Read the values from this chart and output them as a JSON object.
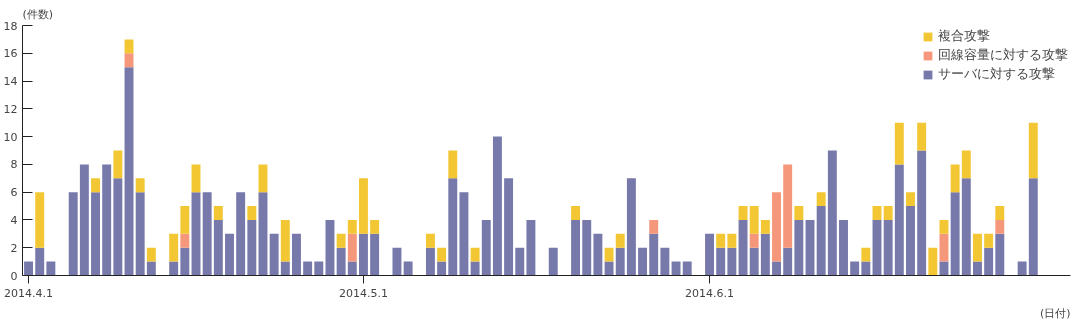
{
  "chart_data": {
    "type": "bar",
    "stacked": true,
    "ylabel": "(件数)",
    "xlabel": "(日付)",
    "x": [
      "2014-04-01",
      "2014-04-02",
      "2014-04-03",
      "2014-04-04",
      "2014-04-05",
      "2014-04-06",
      "2014-04-07",
      "2014-04-08",
      "2014-04-09",
      "2014-04-10",
      "2014-04-11",
      "2014-04-12",
      "2014-04-13",
      "2014-04-14",
      "2014-04-15",
      "2014-04-16",
      "2014-04-17",
      "2014-04-18",
      "2014-04-19",
      "2014-04-20",
      "2014-04-21",
      "2014-04-22",
      "2014-04-23",
      "2014-04-24",
      "2014-04-25",
      "2014-04-26",
      "2014-04-27",
      "2014-04-28",
      "2014-04-29",
      "2014-04-30",
      "2014-05-01",
      "2014-05-02",
      "2014-05-03",
      "2014-05-04",
      "2014-05-05",
      "2014-05-06",
      "2014-05-07",
      "2014-05-08",
      "2014-05-09",
      "2014-05-10",
      "2014-05-11",
      "2014-05-12",
      "2014-05-13",
      "2014-05-14",
      "2014-05-15",
      "2014-05-16",
      "2014-05-17",
      "2014-05-18",
      "2014-05-19",
      "2014-05-20",
      "2014-05-21",
      "2014-05-22",
      "2014-05-23",
      "2014-05-24",
      "2014-05-25",
      "2014-05-26",
      "2014-05-27",
      "2014-05-28",
      "2014-05-29",
      "2014-05-30",
      "2014-05-31",
      "2014-06-01",
      "2014-06-02",
      "2014-06-03",
      "2014-06-04",
      "2014-06-05",
      "2014-06-06",
      "2014-06-07",
      "2014-06-08",
      "2014-06-09",
      "2014-06-10",
      "2014-06-11",
      "2014-06-12",
      "2014-06-13",
      "2014-06-14",
      "2014-06-15",
      "2014-06-16",
      "2014-06-17",
      "2014-06-18",
      "2014-06-19",
      "2014-06-20",
      "2014-06-21",
      "2014-06-22",
      "2014-06-23",
      "2014-06-24",
      "2014-06-25",
      "2014-06-26",
      "2014-06-27",
      "2014-06-28",
      "2014-06-29",
      "2014-06-30"
    ],
    "series": [
      {
        "name": "サーバに対する攻撃",
        "color": "#7779ab",
        "values": [
          1,
          2,
          1,
          0,
          6,
          8,
          6,
          8,
          7,
          15,
          6,
          1,
          0,
          1,
          2,
          6,
          6,
          4,
          3,
          6,
          4,
          6,
          3,
          1,
          3,
          1,
          1,
          4,
          2,
          1,
          3,
          3,
          0,
          2,
          1,
          0,
          2,
          1,
          7,
          6,
          1,
          4,
          10,
          7,
          2,
          4,
          0,
          2,
          0,
          4,
          4,
          3,
          1,
          2,
          7,
          2,
          3,
          2,
          1,
          1,
          0,
          3,
          2,
          2,
          4,
          2,
          3,
          1,
          2,
          4,
          4,
          5,
          9,
          4,
          1,
          1,
          4,
          4,
          8,
          5,
          9,
          0,
          1,
          6,
          7,
          1,
          2,
          3,
          0,
          1,
          7
        ]
      },
      {
        "name": "回線容量に対する攻撃",
        "color": "#f5977a",
        "values": [
          0,
          0,
          0,
          0,
          0,
          0,
          0,
          0,
          0,
          1,
          0,
          0,
          0,
          0,
          1,
          0,
          0,
          0,
          0,
          0,
          0,
          0,
          0,
          0,
          0,
          0,
          0,
          0,
          0,
          2,
          0,
          0,
          0,
          0,
          0,
          0,
          0,
          0,
          0,
          0,
          0,
          0,
          0,
          0,
          0,
          0,
          0,
          0,
          0,
          0,
          0,
          0,
          0,
          0,
          0,
          0,
          1,
          0,
          0,
          0,
          0,
          0,
          0,
          0,
          0,
          1,
          0,
          5,
          6,
          0,
          0,
          0,
          0,
          0,
          0,
          0,
          0,
          0,
          0,
          0,
          0,
          0,
          2,
          0,
          0,
          0,
          0,
          1,
          0,
          0,
          0
        ]
      },
      {
        "name": "複合攻撃",
        "color": "#f2c733",
        "values": [
          0,
          4,
          0,
          0,
          0,
          0,
          1,
          0,
          2,
          1,
          1,
          1,
          0,
          2,
          2,
          2,
          0,
          1,
          0,
          0,
          1,
          2,
          0,
          3,
          0,
          0,
          0,
          0,
          1,
          1,
          4,
          1,
          0,
          0,
          0,
          0,
          1,
          1,
          2,
          0,
          1,
          0,
          0,
          0,
          0,
          0,
          0,
          0,
          0,
          1,
          0,
          0,
          1,
          1,
          0,
          0,
          0,
          0,
          0,
          0,
          0,
          0,
          1,
          1,
          1,
          2,
          1,
          0,
          0,
          1,
          0,
          1,
          0,
          0,
          0,
          1,
          1,
          1,
          3,
          1,
          2,
          2,
          1,
          2,
          2,
          2,
          1,
          1,
          0,
          0,
          4
        ]
      }
    ],
    "ylim": [
      0,
      18
    ],
    "yticks": [
      0,
      2,
      4,
      6,
      8,
      10,
      12,
      14,
      16,
      18
    ],
    "xlim": [
      "2014-03-31T11:00",
      "2014-07-03T08:00"
    ],
    "xticks": [
      {
        "value": "2014-04-01",
        "label": "2014.4.1"
      },
      {
        "value": "2014-05-01",
        "label": "2014.5.1"
      },
      {
        "value": "2014-06-01",
        "label": "2014.6.1"
      }
    ],
    "legend": "top right",
    "grid": false
  }
}
